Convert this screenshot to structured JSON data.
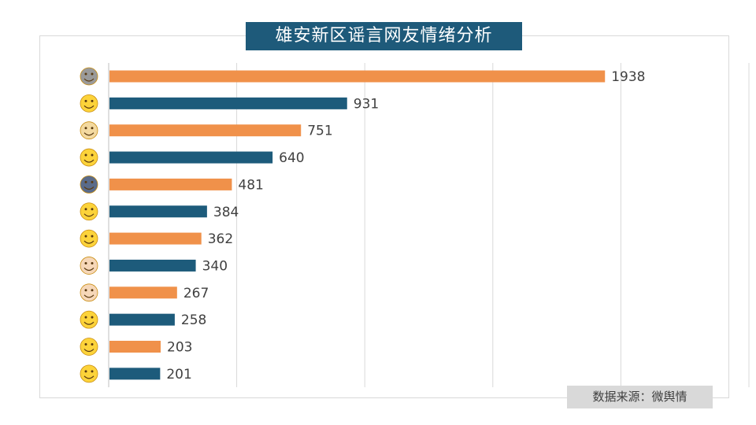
{
  "title": "雄安新区谣言网友情绪分析",
  "source": "数据来源：微舆情",
  "colors": {
    "orange": "#f0914a",
    "blue": "#1d5b7b",
    "title_bg": "#1e5a7a"
  },
  "chart_data": {
    "type": "bar",
    "orientation": "horizontal",
    "title": "雄安新区谣言网友情绪分析",
    "categories": [
      "microphone-icon",
      "tears-of-joy-icon",
      "doge-icon",
      "laughing-icon",
      "husky-icon",
      "shrug-icon",
      "grin-icon",
      "thumbs-up-sideways-icon",
      "thumbs-up-icon",
      "sigh-icon",
      "giggle-icon",
      "confused-icon"
    ],
    "values": [
      1938,
      931,
      751,
      640,
      481,
      384,
      362,
      340,
      267,
      258,
      203,
      201
    ],
    "xlim": [
      0,
      2500
    ],
    "grid": true,
    "legend": "none"
  }
}
